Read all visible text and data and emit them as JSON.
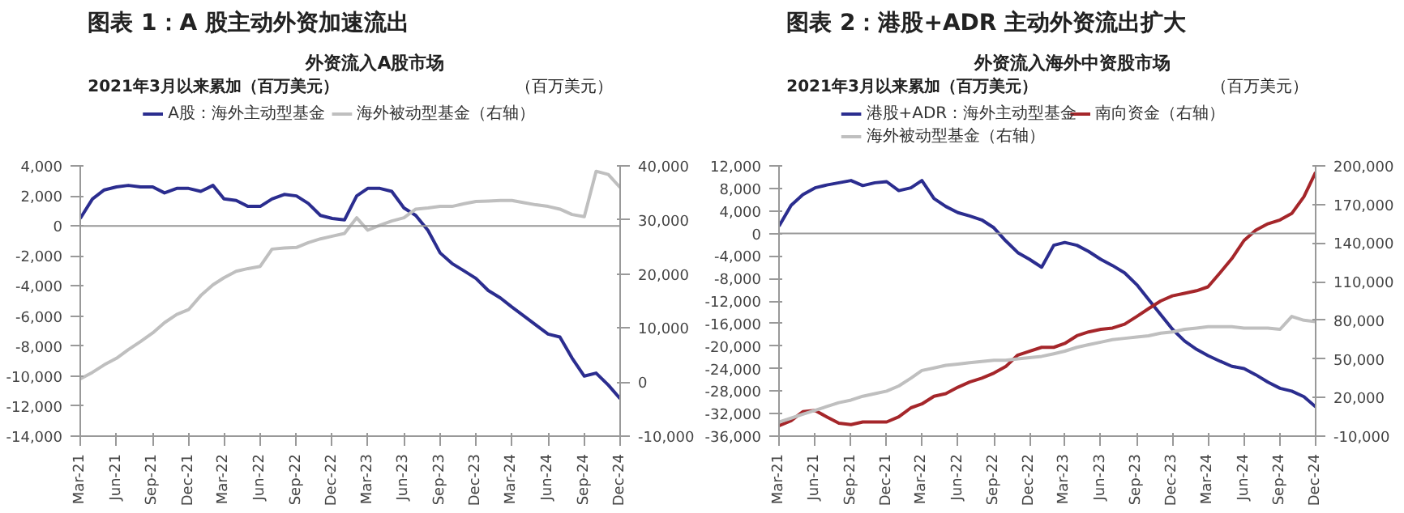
{
  "chart_data": [
    {
      "type": "line",
      "title": "图表 1：A 股主动外资加速流出",
      "subtitle": "外资流入A股市场",
      "ylabel": "2021年3月以来累加（百万美元）",
      "y2label": "（百万美元）",
      "legend": "top",
      "grid": false,
      "x": [
        "2021-03",
        "2021-04",
        "2021-05",
        "2021-06",
        "2021-07",
        "2021-08",
        "2021-09",
        "2021-10",
        "2021-11",
        "2021-12",
        "2022-01",
        "2022-02",
        "2022-03",
        "2022-04",
        "2022-05",
        "2022-06",
        "2022-07",
        "2022-08",
        "2022-09",
        "2022-10",
        "2022-11",
        "2022-12",
        "2023-01",
        "2023-02",
        "2023-03",
        "2023-04",
        "2023-05",
        "2023-06",
        "2023-07",
        "2023-08",
        "2023-09",
        "2023-10",
        "2023-11",
        "2023-12",
        "2024-01",
        "2024-02",
        "2024-03",
        "2024-04",
        "2024-05",
        "2024-06",
        "2024-07",
        "2024-08",
        "2024-09",
        "2024-10",
        "2024-11",
        "2024-12"
      ],
      "xlim": [
        "2021-03",
        "2024-12"
      ],
      "xticks": [
        {
          "value": "2021-03",
          "label": "Mar-21"
        },
        {
          "value": "2021-06",
          "label": "Jun-21"
        },
        {
          "value": "2021-09",
          "label": "Sep-21"
        },
        {
          "value": "2021-12",
          "label": "Dec-21"
        },
        {
          "value": "2022-03",
          "label": "Mar-22"
        },
        {
          "value": "2022-06",
          "label": "Jun-22"
        },
        {
          "value": "2022-09",
          "label": "Sep-22"
        },
        {
          "value": "2022-12",
          "label": "Dec-22"
        },
        {
          "value": "2023-03",
          "label": "Mar-23"
        },
        {
          "value": "2023-06",
          "label": "Jun-23"
        },
        {
          "value": "2023-09",
          "label": "Sep-23"
        },
        {
          "value": "2023-12",
          "label": "Dec-23"
        },
        {
          "value": "2024-03",
          "label": "Mar-24"
        },
        {
          "value": "2024-06",
          "label": "Jun-24"
        },
        {
          "value": "2024-09",
          "label": "Sep-24"
        },
        {
          "value": "2024-12",
          "label": "Dec-24"
        }
      ],
      "ylim": [
        -14000,
        4000
      ],
      "yticks": [
        {
          "value": -14000,
          "label": "-14,000"
        },
        {
          "value": -12000,
          "label": "-12,000"
        },
        {
          "value": -10000,
          "label": "-10,000"
        },
        {
          "value": -8000,
          "label": "-8,000"
        },
        {
          "value": -6000,
          "label": "-6,000"
        },
        {
          "value": -4000,
          "label": "-4,000"
        },
        {
          "value": -2000,
          "label": "-2,000"
        },
        0,
        {
          "value": 2000,
          "label": "2,000"
        },
        {
          "value": 4000,
          "label": "4,000"
        }
      ],
      "y2lim": [
        -10000,
        40000
      ],
      "y2ticks": [
        {
          "value": -10000,
          "label": "-10,000"
        },
        0,
        {
          "value": 10000,
          "label": "10,000"
        },
        {
          "value": 20000,
          "label": "20,000"
        },
        {
          "value": 30000,
          "label": "30,000"
        },
        {
          "value": 40000,
          "label": "40,000"
        }
      ],
      "ref_lines": [
        {
          "axis": "y",
          "value": 0,
          "color": "#999999"
        }
      ],
      "series": [
        {
          "name": "A股：海外主动型基金",
          "color": "#2b2d8f",
          "values": [
            500,
            1800,
            2400,
            2600,
            2700,
            2600,
            2600,
            2200,
            2500,
            2500,
            2300,
            2700,
            1800,
            1700,
            1300,
            1300,
            1800,
            2100,
            2000,
            1500,
            700,
            500,
            400,
            2000,
            2500,
            2500,
            2300,
            1200,
            700,
            -300,
            -1800,
            -2500,
            -3000,
            -3500,
            -4300,
            -4800,
            -5400,
            -6000,
            -6600,
            -7200,
            -7400,
            -8800,
            -10000,
            -9800,
            -10600,
            -11500
          ]
        },
        {
          "name": "海外被动型基金（右轴）",
          "color": "#bfbfbf",
          "axis": "y2",
          "values": [
            600,
            1800,
            3200,
            4400,
            6000,
            7500,
            9100,
            11000,
            12500,
            13400,
            16000,
            18000,
            19300,
            20500,
            21000,
            21400,
            24600,
            24800,
            24900,
            25800,
            26500,
            27000,
            27500,
            30400,
            28100,
            29000,
            29800,
            30400,
            32000,
            32200,
            32500,
            32500,
            33000,
            33400,
            33500,
            33600,
            33600,
            33200,
            32800,
            32500,
            32000,
            31000,
            30600,
            39000,
            38400,
            36000
          ]
        }
      ]
    },
    {
      "type": "line",
      "title": "图表 2：港股+ADR 主动外资流出扩大",
      "subtitle": "外资流入海外中资股市场",
      "ylabel": "2021年3月以来累加（百万美元）",
      "y2label": "（百万美元）",
      "legend": "top",
      "grid": false,
      "x": [
        "2021-03",
        "2021-04",
        "2021-05",
        "2021-06",
        "2021-07",
        "2021-08",
        "2021-09",
        "2021-10",
        "2021-11",
        "2021-12",
        "2022-01",
        "2022-02",
        "2022-03",
        "2022-04",
        "2022-05",
        "2022-06",
        "2022-07",
        "2022-08",
        "2022-09",
        "2022-10",
        "2022-11",
        "2022-12",
        "2023-01",
        "2023-02",
        "2023-03",
        "2023-04",
        "2023-05",
        "2023-06",
        "2023-07",
        "2023-08",
        "2023-09",
        "2023-10",
        "2023-11",
        "2023-12",
        "2024-01",
        "2024-02",
        "2024-03",
        "2024-04",
        "2024-05",
        "2024-06",
        "2024-07",
        "2024-08",
        "2024-09",
        "2024-10",
        "2024-11",
        "2024-12"
      ],
      "xlim": [
        "2021-03",
        "2024-12"
      ],
      "xticks": [
        {
          "value": "2021-03",
          "label": "Mar-21"
        },
        {
          "value": "2021-06",
          "label": "Jun-21"
        },
        {
          "value": "2021-09",
          "label": "Sep-21"
        },
        {
          "value": "2021-12",
          "label": "Dec-21"
        },
        {
          "value": "2022-03",
          "label": "Mar-22"
        },
        {
          "value": "2022-06",
          "label": "Jun-22"
        },
        {
          "value": "2022-09",
          "label": "Sep-22"
        },
        {
          "value": "2022-12",
          "label": "Dec-22"
        },
        {
          "value": "2023-03",
          "label": "Mar-23"
        },
        {
          "value": "2023-06",
          "label": "Jun-23"
        },
        {
          "value": "2023-09",
          "label": "Sep-23"
        },
        {
          "value": "2023-12",
          "label": "Dec-23"
        },
        {
          "value": "2024-03",
          "label": "Mar-24"
        },
        {
          "value": "2024-06",
          "label": "Jun-24"
        },
        {
          "value": "2024-09",
          "label": "Sep-24"
        },
        {
          "value": "2024-12",
          "label": "Dec-24"
        }
      ],
      "ylim": [
        -36000,
        12000
      ],
      "yticks": [
        {
          "value": -36000,
          "label": "-36,000"
        },
        {
          "value": -32000,
          "label": "-32,000"
        },
        {
          "value": -28000,
          "label": "-28,000"
        },
        {
          "value": -24000,
          "label": "-24,000"
        },
        {
          "value": -20000,
          "label": "-20,000"
        },
        {
          "value": -16000,
          "label": "-16,000"
        },
        {
          "value": -12000,
          "label": "-12,000"
        },
        {
          "value": -8000,
          "label": "-8,000"
        },
        {
          "value": -4000,
          "label": "-4,000"
        },
        0,
        {
          "value": 4000,
          "label": "4,000"
        },
        {
          "value": 8000,
          "label": "8,000"
        },
        {
          "value": 12000,
          "label": "12,000"
        }
      ],
      "y2lim": [
        -10000,
        200000
      ],
      "y2ticks": [
        {
          "value": -10000,
          "label": "-10,000"
        },
        {
          "value": 20000,
          "label": "20,000"
        },
        {
          "value": 50000,
          "label": "50,000"
        },
        {
          "value": 80000,
          "label": "80,000"
        },
        {
          "value": 110000,
          "label": "110,000"
        },
        {
          "value": 140000,
          "label": "140,000"
        },
        {
          "value": 170000,
          "label": "170,000"
        },
        {
          "value": 200000,
          "label": "200,000"
        }
      ],
      "ref_lines": [
        {
          "axis": "y",
          "value": 0,
          "color": "#999999"
        }
      ],
      "series": [
        {
          "name": "港股+ADR：海外主动型基金",
          "color": "#2b2d8f",
          "values": [
            1300,
            5000,
            6900,
            8100,
            8600,
            9000,
            9400,
            8500,
            9000,
            9200,
            7600,
            8100,
            9400,
            6200,
            4800,
            3700,
            3100,
            2400,
            1000,
            -1300,
            -3400,
            -4600,
            -6000,
            -2100,
            -1600,
            -2100,
            -3200,
            -4600,
            -5700,
            -7000,
            -9100,
            -11700,
            -14400,
            -17000,
            -19100,
            -20600,
            -21700,
            -22700,
            -23600,
            -24000,
            -25100,
            -26400,
            -27500,
            -28000,
            -29000,
            -30800
          ]
        },
        {
          "name": "南向资金（右轴）",
          "color": "#a5262a",
          "axis": "y2",
          "values": [
            -2000,
            2000,
            9000,
            10000,
            5000,
            0,
            -1000,
            1000,
            1000,
            1000,
            5000,
            12000,
            15000,
            21000,
            23000,
            28000,
            32000,
            35000,
            39000,
            44000,
            53000,
            56000,
            59000,
            59000,
            62000,
            68000,
            71000,
            73000,
            74000,
            77000,
            83000,
            89000,
            95000,
            99000,
            101000,
            103000,
            106000,
            117000,
            128000,
            142000,
            150000,
            155000,
            158000,
            163000,
            176000,
            195000
          ]
        },
        {
          "name": "海外被动型基金（右轴）",
          "color": "#bfbfbf",
          "axis": "y2",
          "values": [
            1000,
            4000,
            7000,
            10000,
            13000,
            16000,
            18000,
            21000,
            23000,
            25000,
            29000,
            35000,
            41000,
            43000,
            45000,
            46000,
            47000,
            48000,
            49000,
            49000,
            50000,
            51000,
            52000,
            54000,
            56000,
            59000,
            61000,
            63000,
            65000,
            66000,
            67000,
            68000,
            70000,
            71000,
            73000,
            74000,
            75000,
            75000,
            75000,
            74000,
            74000,
            74000,
            73000,
            83000,
            80000,
            79000
          ]
        }
      ]
    }
  ]
}
